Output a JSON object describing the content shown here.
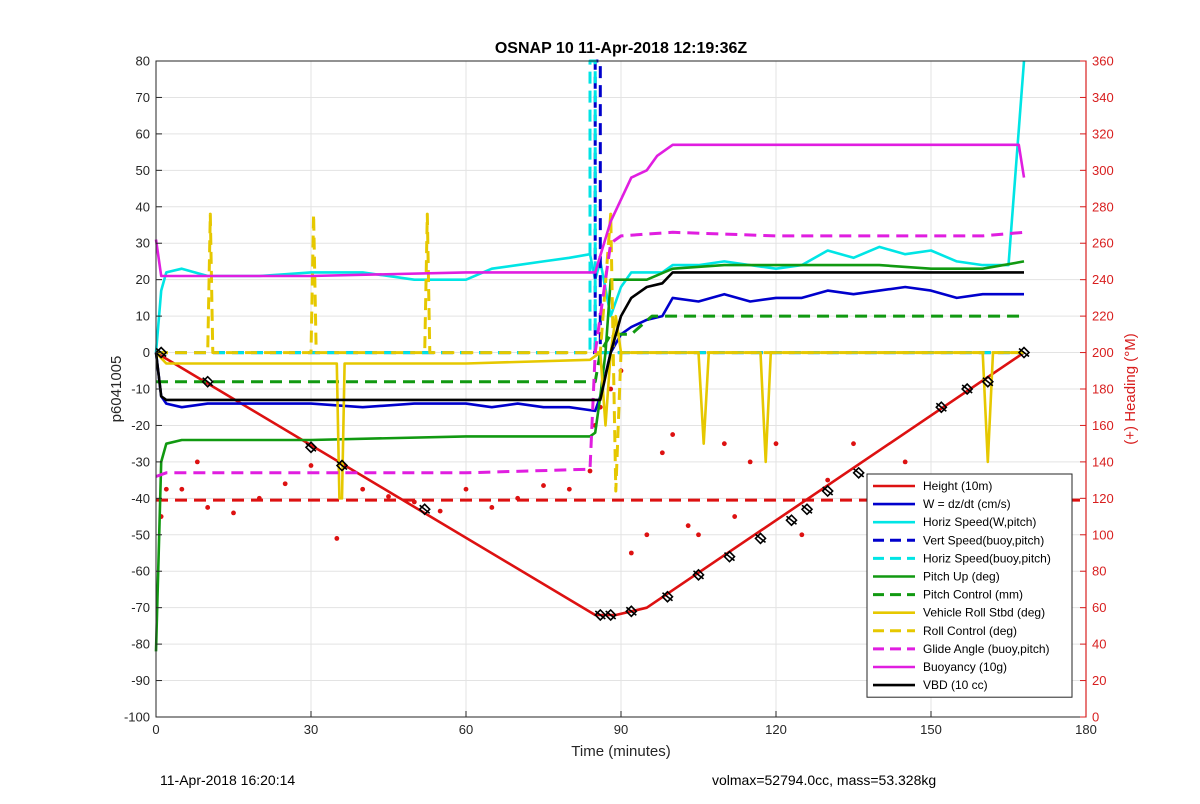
{
  "chart_data": {
    "type": "line",
    "title": "OSNAP 10 11-Apr-2018 12:19:36Z",
    "xlabel": "Time (minutes)",
    "ylabel": "p6041005",
    "y2label": "(+) Heading (°M)",
    "xlim": [
      0,
      180
    ],
    "ylim": [
      -100,
      80
    ],
    "y2lim": [
      0,
      360
    ],
    "xticks": [
      0,
      30,
      60,
      90,
      120,
      150,
      180
    ],
    "yticks": [
      -100,
      -90,
      -80,
      -70,
      -60,
      -50,
      -40,
      -30,
      -20,
      -10,
      0,
      10,
      20,
      30,
      40,
      50,
      60,
      70,
      80
    ],
    "y2ticks": [
      0,
      20,
      40,
      60,
      80,
      100,
      120,
      140,
      160,
      180,
      200,
      220,
      240,
      260,
      280,
      300,
      320,
      340,
      360
    ],
    "grid": true,
    "legend_position": "bottom-right",
    "series": [
      {
        "name": "Height (10m)",
        "color": "#dd1111",
        "style": "solid",
        "x": [
          0,
          85,
          87,
          89,
          95,
          168
        ],
        "y": [
          0,
          -72,
          -72,
          -72,
          -70,
          0
        ]
      },
      {
        "name": "W = dz/dt (cm/s)",
        "color": "#0000cc",
        "style": "solid",
        "x": [
          0,
          1,
          2,
          5,
          10,
          20,
          30,
          40,
          50,
          60,
          65,
          70,
          75,
          80,
          85,
          86,
          88,
          90,
          92,
          95,
          98,
          100,
          105,
          110,
          115,
          120,
          125,
          130,
          135,
          140,
          145,
          150,
          155,
          160,
          165,
          168
        ],
        "y": [
          0,
          -12,
          -14,
          -15,
          -14,
          -14,
          -14,
          -15,
          -14,
          -14,
          -15,
          -14,
          -15,
          -15,
          -16,
          -12,
          0,
          5,
          7,
          9,
          10,
          15,
          14,
          16,
          14,
          15,
          15,
          17,
          16,
          17,
          18,
          17,
          15,
          16,
          16,
          16
        ]
      },
      {
        "name": "Horiz Speed(W,pitch)",
        "color": "#00e5e5",
        "style": "solid",
        "x": [
          0,
          1,
          2,
          5,
          10,
          20,
          30,
          40,
          50,
          60,
          65,
          70,
          75,
          80,
          84,
          85,
          86,
          88,
          90,
          92,
          95,
          98,
          100,
          105,
          110,
          115,
          120,
          125,
          130,
          135,
          140,
          145,
          150,
          155,
          160,
          165,
          168
        ],
        "y": [
          0,
          17,
          22,
          23,
          21,
          21,
          22,
          22,
          20,
          20,
          23,
          24,
          25,
          26,
          27,
          20,
          25,
          10,
          18,
          22,
          22,
          22,
          24,
          24,
          25,
          24,
          23,
          24,
          28,
          26,
          29,
          27,
          28,
          25,
          24,
          24,
          80
        ]
      },
      {
        "name": "Vert Speed(buoy,pitch)",
        "color": "#0000cc",
        "style": "dashed",
        "x": [
          0,
          85,
          85,
          86,
          86,
          168
        ],
        "y": [
          0,
          0,
          80,
          80,
          0,
          0
        ]
      },
      {
        "name": "Horiz Speed(buoy,pitch)",
        "color": "#00e5e5",
        "style": "dashed",
        "x": [
          0,
          84,
          84,
          85,
          85,
          168
        ],
        "y": [
          0,
          0,
          80,
          80,
          0,
          0
        ]
      },
      {
        "name": "Pitch Up (deg)",
        "color": "#119911",
        "style": "solid",
        "x": [
          0,
          1,
          2,
          5,
          30,
          60,
          84,
          85,
          86,
          87,
          88,
          90,
          95,
          100,
          110,
          120,
          130,
          140,
          150,
          160,
          168
        ],
        "y": [
          -82,
          -30,
          -25,
          -24,
          -24,
          -23,
          -23,
          -22,
          -12,
          0,
          20,
          20,
          20,
          23,
          24,
          24,
          24,
          24,
          23,
          23,
          25
        ]
      },
      {
        "name": "Pitch Control (mm)",
        "color": "#119911",
        "style": "dashed",
        "x": [
          0,
          2,
          30,
          60,
          85,
          86,
          88,
          92,
          96,
          100,
          168
        ],
        "y": [
          -8,
          -8,
          -8,
          -8,
          -8,
          0,
          5,
          5,
          10,
          10,
          10
        ]
      },
      {
        "name": "Vehicle Roll Stbd (deg)",
        "color": "#e6c800",
        "style": "solid",
        "x": [
          0,
          2,
          30,
          35,
          35.5,
          36,
          36.5,
          60,
          84,
          86,
          87,
          88,
          89,
          90,
          100,
          105,
          106,
          107,
          117,
          118,
          119,
          140,
          150,
          160,
          161,
          162,
          168
        ],
        "y": [
          0,
          -3,
          -3,
          -3,
          -40,
          -40,
          -3,
          -3,
          -2,
          0,
          -20,
          0,
          10,
          0,
          0,
          0,
          -25,
          0,
          0,
          -30,
          0,
          0,
          0,
          0,
          -30,
          0,
          0
        ]
      },
      {
        "name": "Roll Control (deg)",
        "color": "#e6c800",
        "style": "dashed",
        "x": [
          0,
          10,
          10.5,
          11,
          30,
          30.5,
          31,
          52,
          52.5,
          53,
          84,
          86,
          88,
          89,
          90,
          93,
          168
        ],
        "y": [
          0,
          0,
          38,
          0,
          0,
          38,
          0,
          0,
          38,
          0,
          0,
          0,
          38,
          -38,
          0,
          0,
          0
        ]
      },
      {
        "name": "Glide Angle (buoy,pitch)",
        "color": "#e01ee0",
        "style": "dashed",
        "x": [
          0,
          2,
          30,
          60,
          84,
          85,
          86,
          88,
          90,
          100,
          120,
          140,
          160,
          168
        ],
        "y": [
          -34,
          -33,
          -33,
          -33,
          -32,
          0,
          10,
          30,
          32,
          33,
          32,
          32,
          32,
          33
        ]
      },
      {
        "name": "Buoyancy (10g)",
        "color": "#e01ee0",
        "style": "solid",
        "x": [
          0,
          1,
          2,
          30,
          60,
          85,
          88,
          92,
          95,
          97,
          100,
          167,
          168
        ],
        "y": [
          31,
          21,
          21,
          21,
          22,
          22,
          36,
          48,
          50,
          54,
          57,
          57,
          48
        ]
      },
      {
        "name": "VBD (10 cc)",
        "color": "#000000",
        "style": "solid",
        "x": [
          0,
          1,
          2,
          85,
          86,
          88,
          90,
          92,
          95,
          98,
          100,
          168
        ],
        "y": [
          0,
          -12,
          -13,
          -13,
          -13,
          0,
          10,
          15,
          18,
          19,
          22,
          22
        ]
      }
    ],
    "heading_series": {
      "name": "(+) Heading (°M)",
      "color": "#dd1111",
      "x": [
        1,
        2,
        5,
        8,
        10,
        15,
        20,
        25,
        30,
        35,
        40,
        45,
        50,
        55,
        60,
        65,
        70,
        75,
        80,
        84,
        85,
        86,
        88,
        90,
        92,
        95,
        98,
        100,
        103,
        105,
        110,
        112,
        115,
        120,
        125,
        130,
        135,
        140,
        145,
        150,
        155,
        160,
        165,
        168
      ],
      "y": [
        110,
        125,
        125,
        140,
        115,
        112,
        120,
        128,
        138,
        98,
        125,
        121,
        118,
        113,
        125,
        115,
        120,
        127,
        125,
        135,
        160,
        170,
        180,
        190,
        90,
        100,
        145,
        155,
        105,
        100,
        150,
        110,
        140,
        150,
        100,
        130,
        150,
        100,
        140,
        120,
        100,
        130,
        110,
        120
      ]
    },
    "heading_reference": {
      "color": "#dd1111",
      "style": "dashed",
      "y": 119
    },
    "markers": {
      "color": "#000000",
      "x": [
        1,
        10,
        30,
        36,
        52,
        86,
        88,
        92,
        99,
        105,
        111,
        117,
        123,
        126,
        130,
        136,
        152,
        157,
        161,
        168
      ],
      "y": [
        0,
        -8,
        -26,
        -31,
        -43,
        -72,
        -72,
        -71,
        -67,
        -61,
        -56,
        -51,
        -46,
        -43,
        -38,
        -33,
        -15,
        -10,
        -8,
        0
      ]
    }
  },
  "footer": {
    "left": "11-Apr-2018 16:20:14",
    "right": "volmax=52794.0cc, mass=53.328kg"
  }
}
